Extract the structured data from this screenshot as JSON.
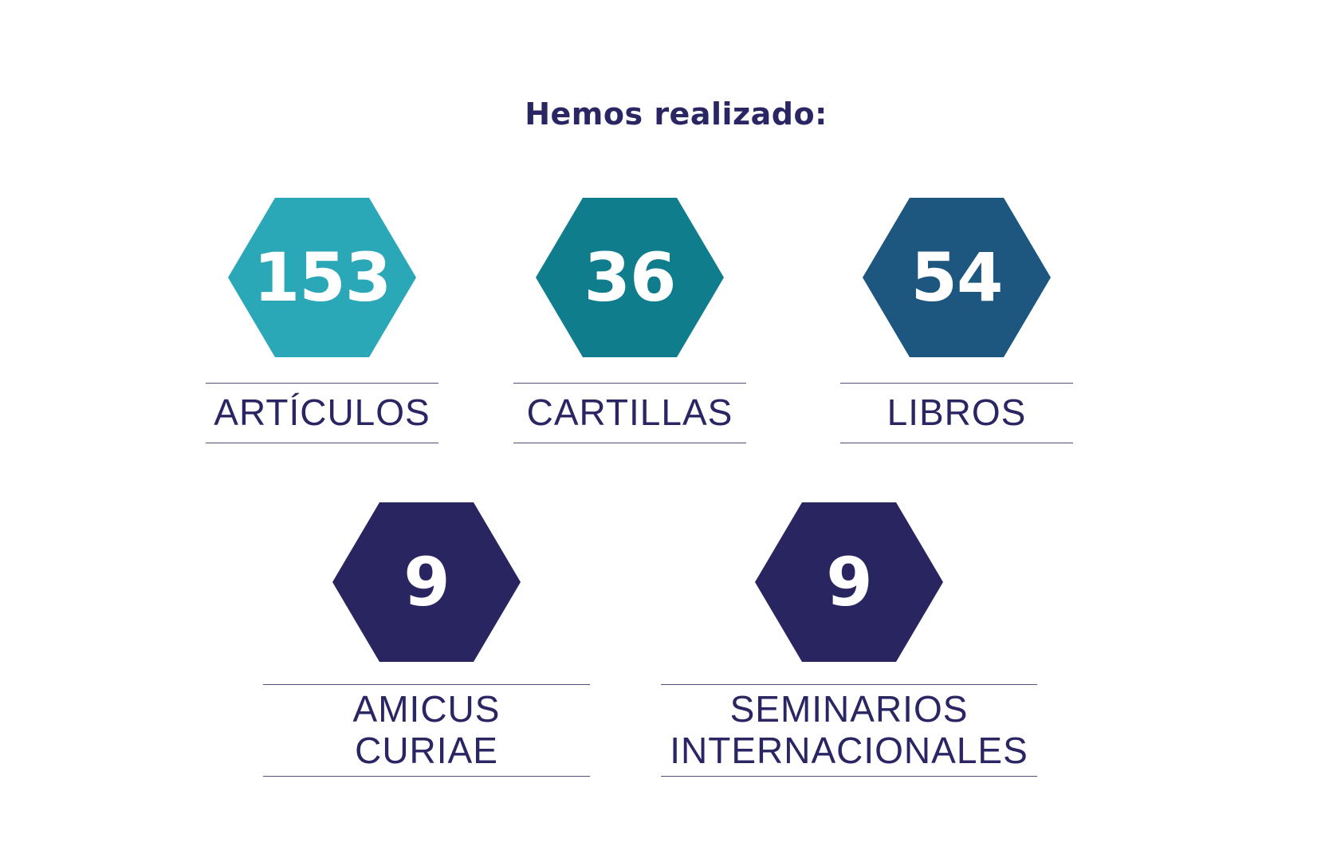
{
  "page": {
    "title": "Hemos realizado:",
    "background": "#ffffff"
  },
  "chart_data": {
    "type": "table",
    "title": "Hemos realizado:",
    "categories": [
      "ARTÍCULOS",
      "CARTILLAS",
      "LIBROS",
      "AMICUS CURIAE",
      "SEMINARIOS INTERNACIONALES"
    ],
    "values": [
      153,
      36,
      54,
      9,
      9
    ],
    "colors": [
      "#2AA8B7",
      "#0F7D8C",
      "#1D5780",
      "#292560",
      "#292560"
    ],
    "layout": "hexagonal stat badges; top row of 3 (ARTÍCULOS, CARTILLAS, LIBROS), bottom row of 2 (AMICUS CURIAE, SEMINARIOS INTERNACIONALES); each label sits between thin horizontal rules below its hexagon"
  },
  "stats": [
    {
      "value": "153",
      "label": "ARTÍCULOS",
      "label_lines": [
        "ARTÍCULOS"
      ],
      "color": "#2AA8B7"
    },
    {
      "value": "36",
      "label": "CARTILLAS",
      "label_lines": [
        "CARTILLAS"
      ],
      "color": "#0F7D8C"
    },
    {
      "value": "54",
      "label": "LIBROS",
      "label_lines": [
        "LIBROS"
      ],
      "color": "#1D5780"
    },
    {
      "value": "9",
      "label": "AMICUS CURIAE",
      "label_lines": [
        "AMICUS",
        "CURIAE"
      ],
      "color": "#292560"
    },
    {
      "value": "9",
      "label": "SEMINARIOS INTERNACIONALES",
      "label_lines": [
        "SEMINARIOS",
        "INTERNACIONALES"
      ],
      "color": "#292560"
    }
  ],
  "colors": {
    "text": "#2A2663",
    "rule": "#50507A",
    "value_text": "#FFFFFF"
  }
}
